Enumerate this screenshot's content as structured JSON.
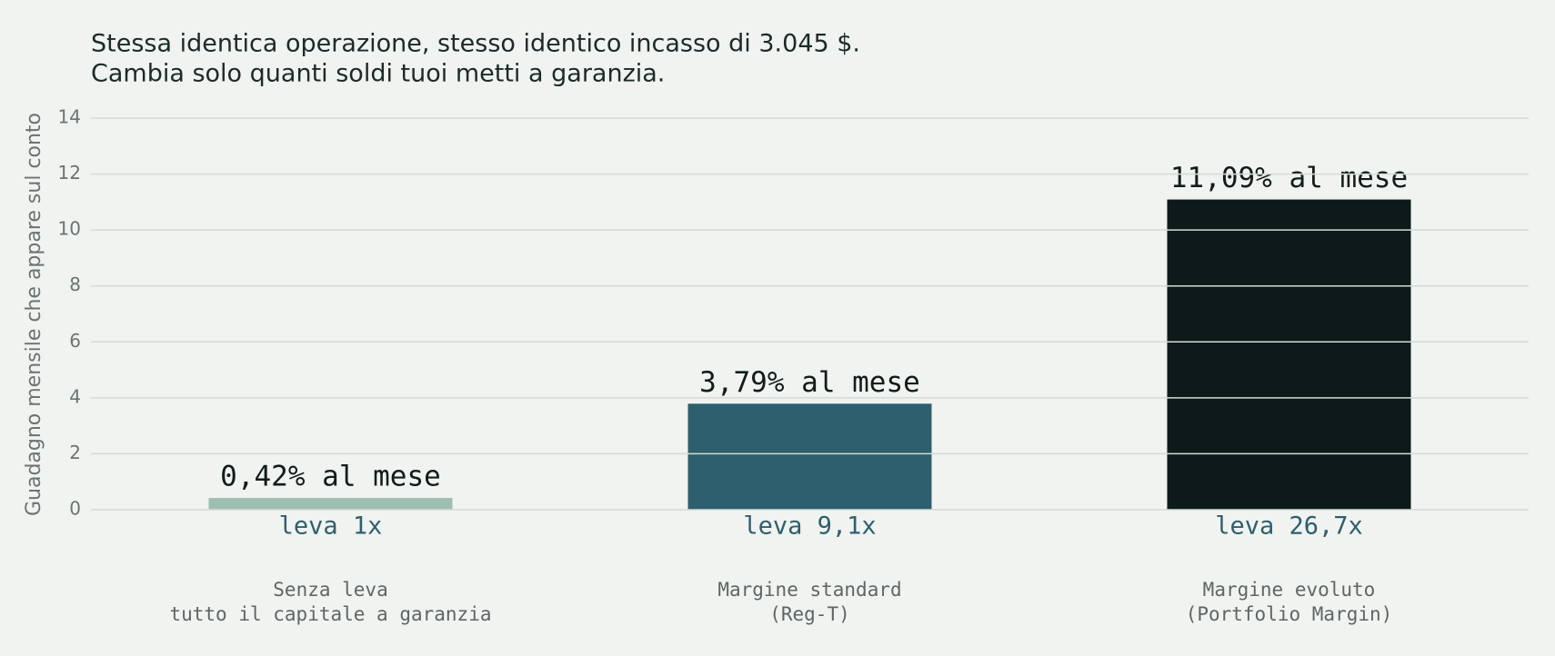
{
  "chart_data": {
    "type": "bar",
    "title": [
      "Stessa identica operazione, stesso identico incasso di 3.045 $.",
      "Cambia solo quanti soldi tuoi metti a garanzia."
    ],
    "y_label": "Guadagno mensile che appare sul conto",
    "categories": [
      [
        "Senza leva",
        "tutto il capitale a garanzia"
      ],
      [
        "Margine standard",
        "(Reg-T)"
      ],
      [
        "Margine evoluto",
        "(Portfolio Margin)"
      ]
    ],
    "leverage_labels": [
      "leva 1x",
      "leva 9,1x",
      "leva 26,7x"
    ],
    "values": [
      0.42,
      3.79,
      11.09
    ],
    "value_labels": [
      "0,42% al mese",
      "3,79% al mese",
      "11,09% al mese"
    ],
    "colors": [
      "#9dbfb0",
      "#2e5f6e",
      "#0e1a1a"
    ],
    "ylim": [
      0,
      14
    ],
    "yticks": [
      0,
      2,
      4,
      6,
      8,
      10,
      12,
      14
    ],
    "grid": true
  }
}
